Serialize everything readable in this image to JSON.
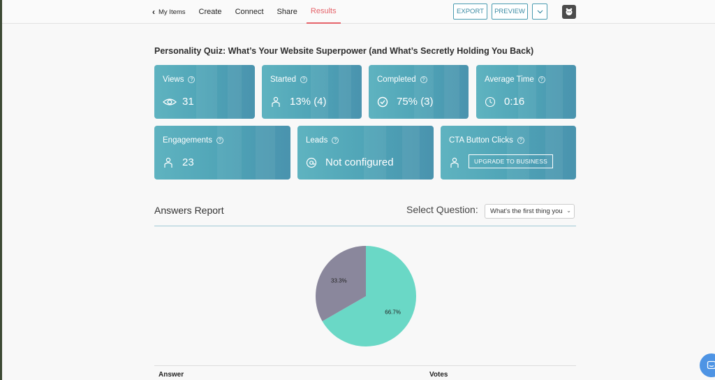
{
  "nav": {
    "back_label": "My Items",
    "tabs": [
      "Create",
      "Connect",
      "Share",
      "Results"
    ],
    "active_tab": "Results"
  },
  "toolbar": {
    "export_label": "EXPORT",
    "preview_label": "PREVIEW"
  },
  "page_title": "Personality Quiz: What’s Your Website Superpower (and What’s Secretly Holding You Back)",
  "stats": {
    "views": {
      "label": "Views",
      "value": "31",
      "icon": "eye-icon"
    },
    "started": {
      "label": "Started",
      "value": "13% (4)",
      "icon": "person-icon"
    },
    "completed": {
      "label": "Completed",
      "value": "75% (3)",
      "icon": "check-circle-icon"
    },
    "average_time": {
      "label": "Average Time",
      "value": "0:16",
      "icon": "clock-icon"
    },
    "engagements": {
      "label": "Engagements",
      "value": "23",
      "icon": "person-icon"
    },
    "leads": {
      "label": "Leads",
      "value": "Not configured",
      "icon": "at-icon"
    },
    "cta": {
      "label": "CTA Button Clicks",
      "button_label": "UPGRADE TO BUSINESS",
      "icon": "person-icon"
    }
  },
  "answers": {
    "title": "Answers Report",
    "select_label": "Select Question:",
    "selected_question": "What's the first thing you"
  },
  "chart_data": {
    "type": "pie",
    "slices": [
      {
        "value": 66.7,
        "label": "66.7%",
        "color": "#6ad8c6"
      },
      {
        "value": 33.3,
        "label": "33.3%",
        "color": "#8a879c"
      }
    ]
  },
  "table": {
    "headers": [
      "Answer",
      "Votes"
    ]
  },
  "colors": {
    "accent": "#e5636a",
    "card": "#52a6b8",
    "outline": "#4a9bb0"
  }
}
